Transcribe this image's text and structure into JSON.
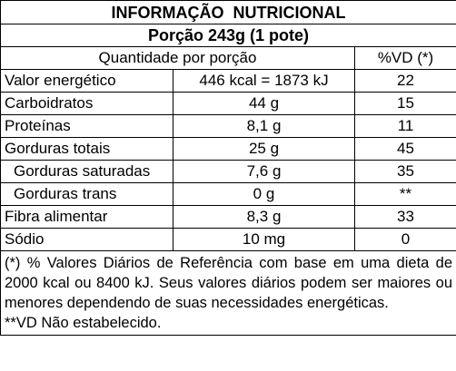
{
  "header": {
    "title": "INFORMAÇÃO  NUTRICIONAL",
    "serving": "Porção 243g (1 pote)"
  },
  "table": {
    "columns": [
      "Quantidade por porção",
      "%VD (*)"
    ],
    "rows": [
      [
        "Valor energético",
        "446 kcal = 1873 kJ",
        "22"
      ],
      [
        "Carboidratos",
        "44 g",
        "15"
      ],
      [
        "Proteínas",
        "8,1 g",
        "11"
      ],
      [
        "Gorduras totais",
        "25 g",
        "45"
      ],
      [
        "Gorduras saturadas",
        "7,6 g",
        "35"
      ],
      [
        "Gorduras trans",
        "0 g",
        "**"
      ],
      [
        "Fibra alimentar",
        "8,3 g",
        "33"
      ],
      [
        "Sódio",
        "10 mg",
        "0"
      ]
    ]
  },
  "footnotes": [
    "(*) % Valores Diários de Referência com base em uma dieta de 2000 kcal ou 8400 kJ. Seus valores diários podem ser maiores ou menores dependendo de suas necessidades energéticas.",
    "**VD Não estabelecido."
  ]
}
